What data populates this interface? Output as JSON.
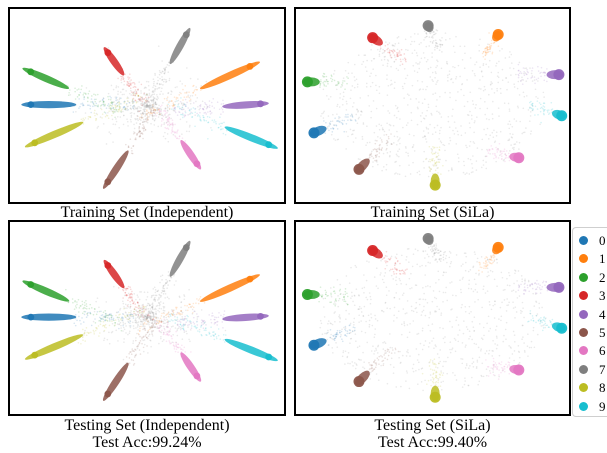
{
  "colors": [
    "#1f77b4",
    "#ff7f0e",
    "#2ca02c",
    "#d62728",
    "#9467bd",
    "#8c564b",
    "#e377c2",
    "#7f7f7f",
    "#bcbd22",
    "#17becf"
  ],
  "legend": [
    "0",
    "1",
    "2",
    "3",
    "4",
    "5",
    "6",
    "7",
    "8",
    "9"
  ],
  "captions": [
    {
      "line1": "Training Set (Independent)",
      "line2": ""
    },
    {
      "line1": "Training Set (SiLa)",
      "line2": ""
    },
    {
      "line1": "Testing Set (Independent)",
      "line2": "Test Acc:99.24%"
    },
    {
      "line1": "Testing Set (SiLa)",
      "line2": "Test Acc:99.40%"
    }
  ],
  "chart_data": [
    {
      "type": "scatter",
      "title": "Training Set (Independent)",
      "legend_entries": [
        "0",
        "1",
        "2",
        "3",
        "4",
        "5",
        "6",
        "7",
        "8",
        "9"
      ],
      "axes": "none",
      "grid": false,
      "series": [
        {
          "name": "0",
          "center": [
            -0.55,
            0.01
          ],
          "tip": [
            -0.88,
            0.01
          ]
        },
        {
          "name": "1",
          "center": [
            0.42,
            0.2
          ],
          "tip": [
            0.78,
            0.44
          ]
        },
        {
          "name": "2",
          "center": [
            -0.6,
            0.2
          ],
          "tip": [
            -0.88,
            0.38
          ]
        },
        {
          "name": "3",
          "center": [
            -0.18,
            0.35
          ],
          "tip": [
            -0.3,
            0.6
          ]
        },
        {
          "name": "4",
          "center": [
            0.58,
            -0.01
          ],
          "tip": [
            0.86,
            0.02
          ]
        },
        {
          "name": "5",
          "center": [
            -0.15,
            -0.52
          ],
          "tip": [
            -0.3,
            -0.86
          ]
        },
        {
          "name": "6",
          "center": [
            0.26,
            -0.4
          ],
          "tip": [
            0.38,
            -0.66
          ]
        },
        {
          "name": "7",
          "center": [
            0.18,
            0.48
          ],
          "tip": [
            0.3,
            0.8
          ]
        },
        {
          "name": "8",
          "center": [
            -0.5,
            -0.2
          ],
          "tip": [
            -0.85,
            -0.42
          ]
        },
        {
          "name": "9",
          "center": [
            0.6,
            -0.25
          ],
          "tip": [
            0.92,
            -0.44
          ]
        }
      ]
    },
    {
      "type": "scatter",
      "title": "Training Set (SiLa)",
      "legend_entries": [
        "0",
        "1",
        "2",
        "3",
        "4",
        "5",
        "6",
        "7",
        "8",
        "9"
      ],
      "axes": "none",
      "grid": false,
      "series": [
        {
          "name": "0",
          "center": [
            -0.8,
            -0.25
          ],
          "tip": [
            -0.9,
            -0.31
          ]
        },
        {
          "name": "1",
          "center": [
            0.46,
            0.72
          ],
          "tip": [
            0.5,
            0.8
          ]
        },
        {
          "name": "2",
          "center": [
            -0.85,
            0.26
          ],
          "tip": [
            -0.95,
            0.26
          ]
        },
        {
          "name": "3",
          "center": [
            -0.38,
            0.68
          ],
          "tip": [
            -0.46,
            0.76
          ]
        },
        {
          "name": "4",
          "center": [
            0.86,
            0.34
          ],
          "tip": [
            0.96,
            0.34
          ]
        },
        {
          "name": "5",
          "center": [
            -0.48,
            -0.6
          ],
          "tip": [
            -0.56,
            -0.72
          ]
        },
        {
          "name": "6",
          "center": [
            0.58,
            -0.56
          ],
          "tip": [
            0.66,
            -0.58
          ]
        },
        {
          "name": "7",
          "center": [
            -0.01,
            0.82
          ],
          "tip": [
            -0.04,
            0.9
          ]
        },
        {
          "name": "8",
          "center": [
            0.02,
            -0.76
          ],
          "tip": [
            0.02,
            -0.9
          ]
        },
        {
          "name": "9",
          "center": [
            0.9,
            -0.08
          ],
          "tip": [
            0.98,
            -0.12
          ]
        }
      ]
    },
    {
      "type": "scatter",
      "title": "Testing Set (Independent)",
      "subtitle": "Test Acc:99.24%",
      "legend_entries": [
        "0",
        "1",
        "2",
        "3",
        "4",
        "5",
        "6",
        "7",
        "8",
        "9"
      ],
      "axes": "none",
      "grid": false,
      "series": [
        {
          "name": "0",
          "center": [
            -0.55,
            0.01
          ],
          "tip": [
            -0.88,
            0.01
          ]
        },
        {
          "name": "1",
          "center": [
            0.42,
            0.2
          ],
          "tip": [
            0.78,
            0.44
          ]
        },
        {
          "name": "2",
          "center": [
            -0.6,
            0.2
          ],
          "tip": [
            -0.88,
            0.38
          ]
        },
        {
          "name": "3",
          "center": [
            -0.18,
            0.35
          ],
          "tip": [
            -0.3,
            0.6
          ]
        },
        {
          "name": "4",
          "center": [
            0.58,
            -0.01
          ],
          "tip": [
            0.86,
            0.02
          ]
        },
        {
          "name": "5",
          "center": [
            -0.15,
            -0.52
          ],
          "tip": [
            -0.3,
            -0.86
          ]
        },
        {
          "name": "6",
          "center": [
            0.26,
            -0.4
          ],
          "tip": [
            0.38,
            -0.66
          ]
        },
        {
          "name": "7",
          "center": [
            0.18,
            0.48
          ],
          "tip": [
            0.3,
            0.8
          ]
        },
        {
          "name": "8",
          "center": [
            -0.5,
            -0.2
          ],
          "tip": [
            -0.85,
            -0.42
          ]
        },
        {
          "name": "9",
          "center": [
            0.6,
            -0.25
          ],
          "tip": [
            0.92,
            -0.44
          ]
        }
      ]
    },
    {
      "type": "scatter",
      "title": "Testing Set (SiLa)",
      "subtitle": "Test Acc:99.40%",
      "legend_entries": [
        "0",
        "1",
        "2",
        "3",
        "4",
        "5",
        "6",
        "7",
        "8",
        "9"
      ],
      "axes": "none",
      "grid": false,
      "series": [
        {
          "name": "0",
          "center": [
            -0.8,
            -0.25
          ],
          "tip": [
            -0.9,
            -0.31
          ]
        },
        {
          "name": "1",
          "center": [
            0.46,
            0.72
          ],
          "tip": [
            0.5,
            0.8
          ]
        },
        {
          "name": "2",
          "center": [
            -0.85,
            0.26
          ],
          "tip": [
            -0.95,
            0.26
          ]
        },
        {
          "name": "3",
          "center": [
            -0.38,
            0.68
          ],
          "tip": [
            -0.46,
            0.76
          ]
        },
        {
          "name": "4",
          "center": [
            0.86,
            0.34
          ],
          "tip": [
            0.96,
            0.34
          ]
        },
        {
          "name": "5",
          "center": [
            -0.48,
            -0.6
          ],
          "tip": [
            -0.56,
            -0.72
          ]
        },
        {
          "name": "6",
          "center": [
            0.58,
            -0.56
          ],
          "tip": [
            0.66,
            -0.58
          ]
        },
        {
          "name": "7",
          "center": [
            -0.01,
            0.82
          ],
          "tip": [
            -0.04,
            0.9
          ]
        },
        {
          "name": "8",
          "center": [
            0.02,
            -0.76
          ],
          "tip": [
            0.02,
            -0.9
          ]
        },
        {
          "name": "9",
          "center": [
            0.9,
            -0.08
          ],
          "tip": [
            0.98,
            -0.12
          ]
        }
      ]
    }
  ]
}
